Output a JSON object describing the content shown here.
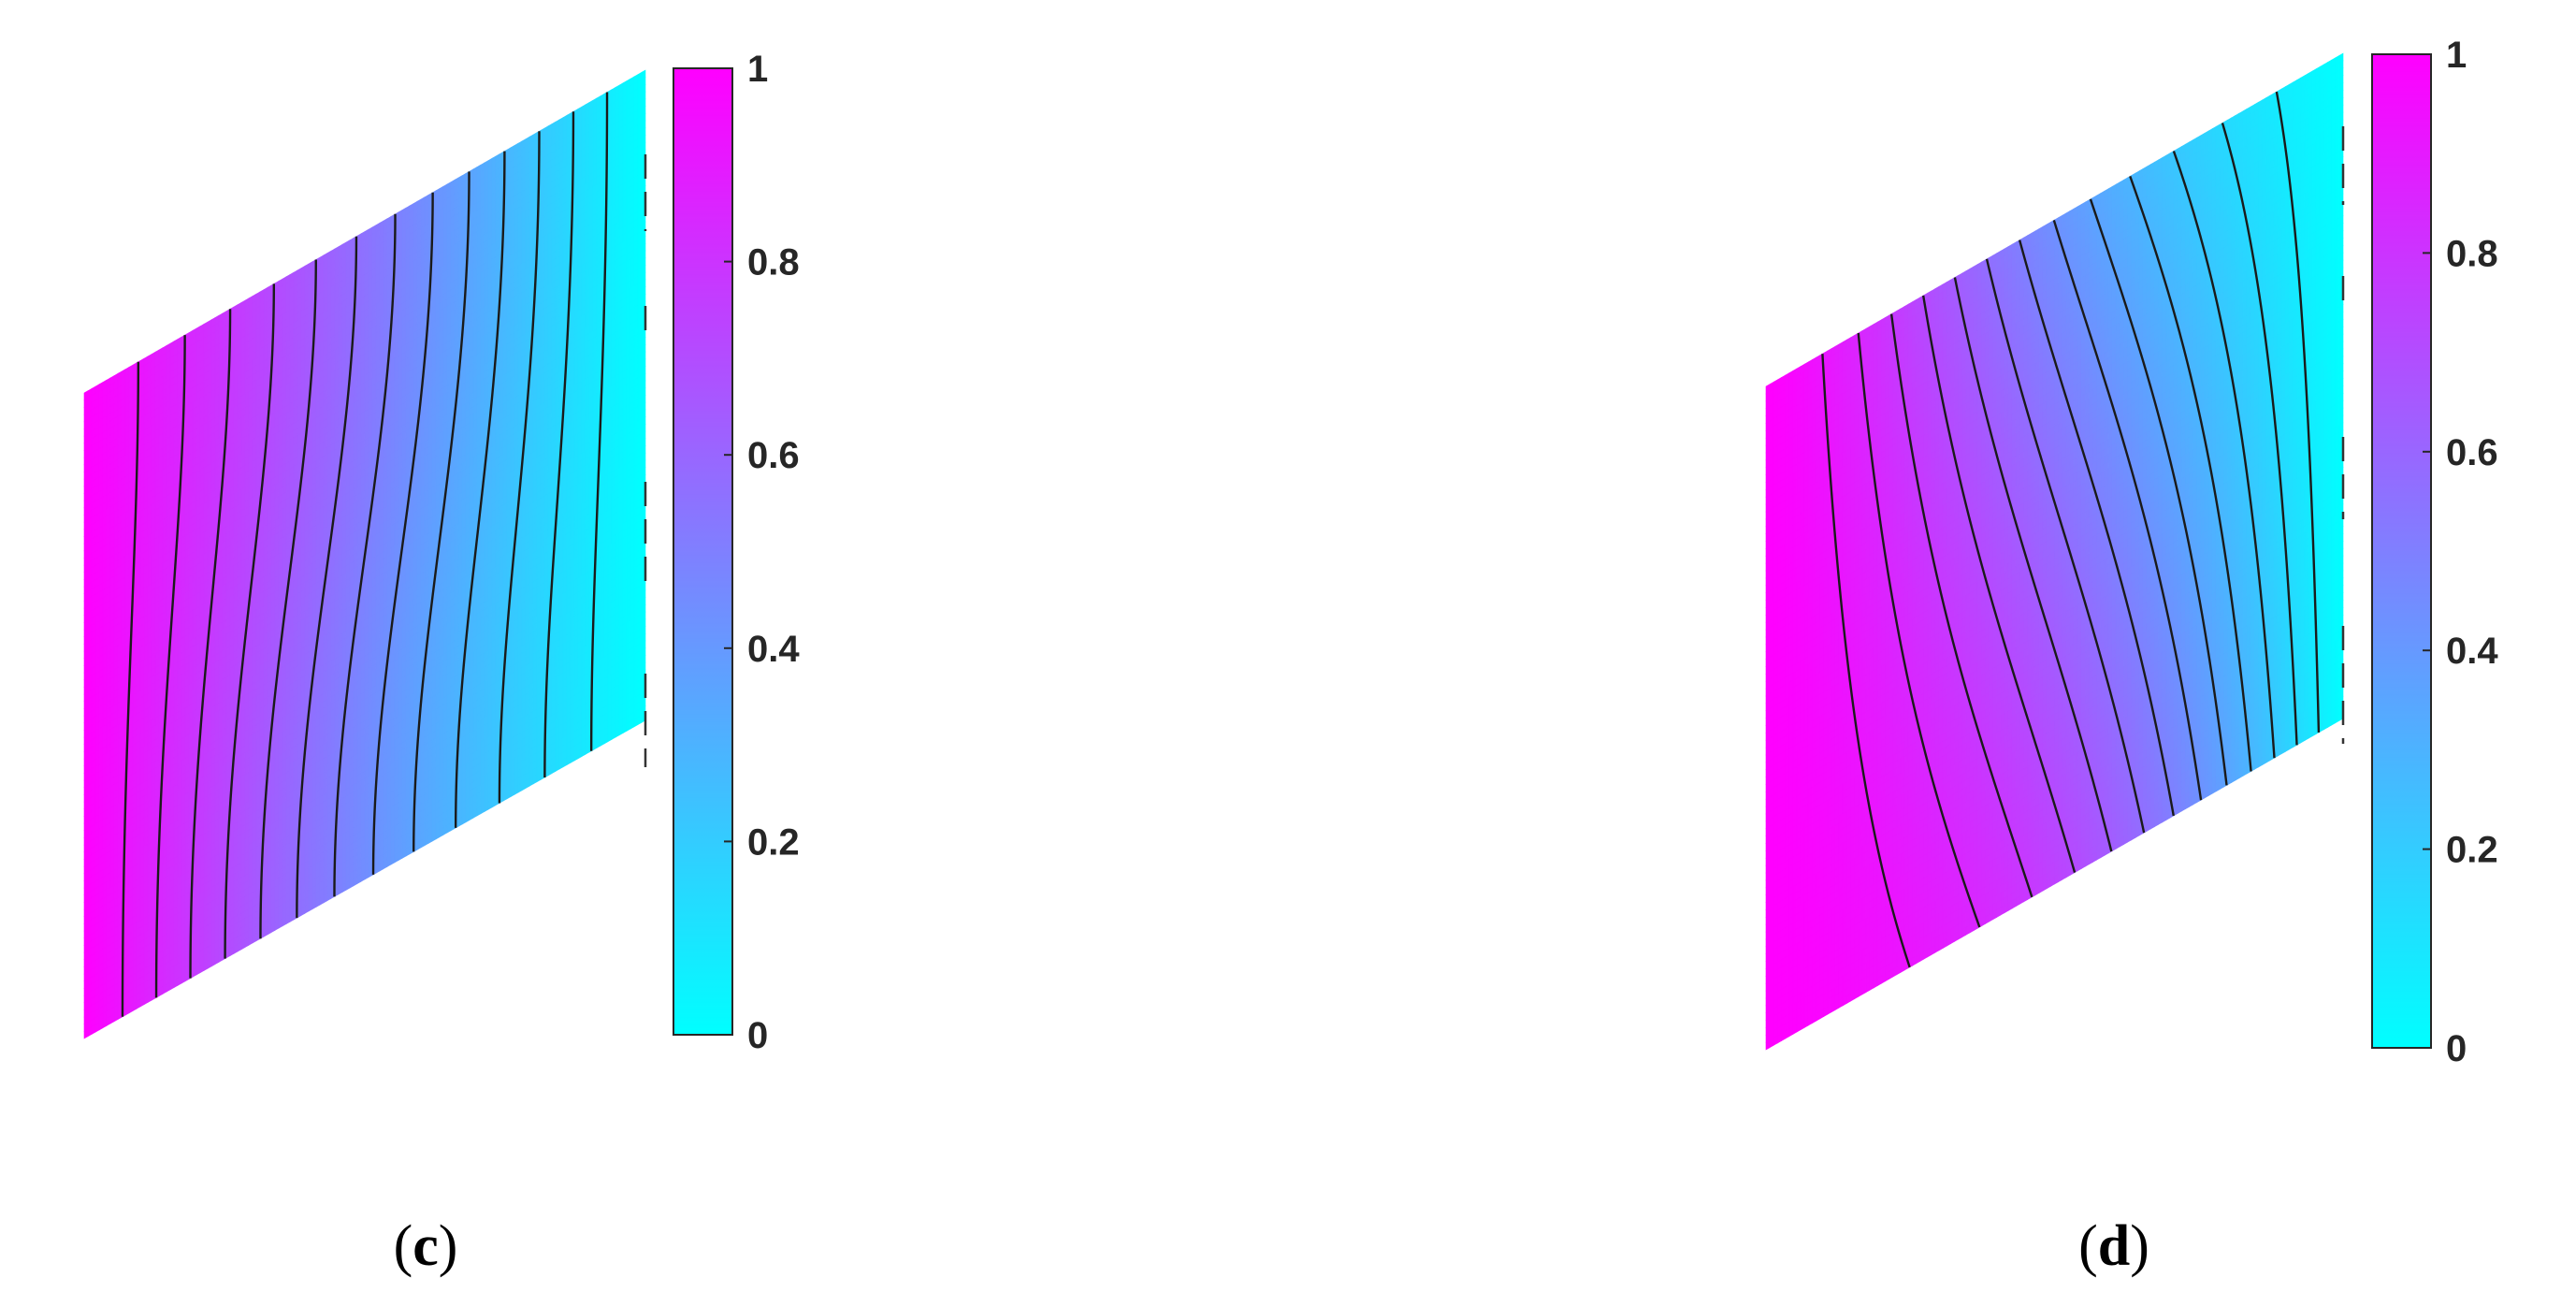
{
  "chart_data": [
    {
      "type": "heatmap",
      "panel_label": "c",
      "colormap": [
        "#00ffff",
        "#ff00ff"
      ],
      "colorbar": {
        "min": 0,
        "max": 1,
        "ticks": [
          "0",
          "0.2",
          "0.4",
          "0.6",
          "0.8",
          "1"
        ]
      },
      "contour_levels": [
        0.08,
        0.15,
        0.22,
        0.29,
        0.36,
        0.43,
        0.5,
        0.57,
        0.64,
        0.71,
        0.78,
        0.85,
        0.92
      ],
      "boundary_values": {
        "left": 1,
        "right": 0
      },
      "field_shape": "linear"
    },
    {
      "type": "heatmap",
      "panel_label": "d",
      "colormap": [
        "#00ffff",
        "#ff00ff"
      ],
      "colorbar": {
        "min": 0,
        "max": 1,
        "ticks": [
          "0",
          "0.2",
          "0.4",
          "0.6",
          "0.8",
          "1"
        ]
      },
      "contour_levels": [
        0.08,
        0.15,
        0.22,
        0.29,
        0.36,
        0.43,
        0.5,
        0.57,
        0.64,
        0.71,
        0.78,
        0.85,
        0.92
      ],
      "boundary_values": {
        "left": 1,
        "right": 0
      },
      "field_shape": "convective"
    }
  ]
}
